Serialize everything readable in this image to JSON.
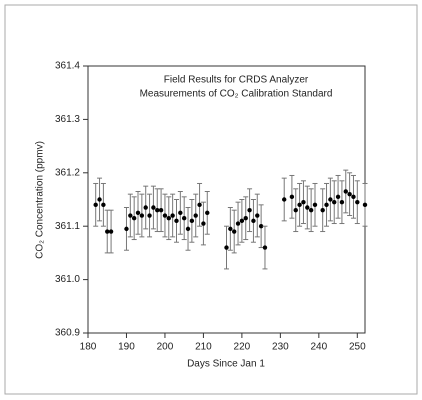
{
  "chart_data": {
    "type": "scatter",
    "title": [
      "Field Results for CRDS Analyzer",
      "Measurements of CO₂ Calibration Standard"
    ],
    "x_label": "Days Since Jan 1",
    "y_label": "CO₂ Concentration (ppmv)",
    "xlim": [
      180,
      252
    ],
    "xticks": [
      180,
      190,
      200,
      210,
      220,
      230,
      240,
      250
    ],
    "ylim": [
      360.9,
      361.4
    ],
    "yticks": [
      360.9,
      {
        "value": 361.0,
        "label": "361.0"
      },
      361.1,
      361.2,
      361.3,
      361.4
    ],
    "series": [
      {
        "color": "#000000",
        "x": [
          182,
          183,
          184,
          185,
          186,
          190,
          191,
          192,
          193,
          194,
          195,
          196,
          197,
          198,
          199,
          200,
          201,
          202,
          203,
          204,
          205,
          206,
          207,
          208,
          209,
          210,
          211,
          216,
          217,
          218,
          219,
          220,
          221,
          222,
          223,
          224,
          225,
          226,
          231,
          233,
          234,
          235,
          236,
          237,
          238,
          239,
          241,
          242,
          243,
          244,
          245,
          246,
          247,
          248,
          249,
          250,
          252
        ],
        "values": [
          361.14,
          361.15,
          361.14,
          361.09,
          361.09,
          361.095,
          361.12,
          361.115,
          361.125,
          361.12,
          361.135,
          361.12,
          361.135,
          361.13,
          361.13,
          361.12,
          361.115,
          361.12,
          361.11,
          361.125,
          361.115,
          361.095,
          361.11,
          361.12,
          361.14,
          361.105,
          361.125,
          361.06,
          361.095,
          361.09,
          361.105,
          361.11,
          361.115,
          361.13,
          361.11,
          361.12,
          361.1,
          361.06,
          361.15,
          361.155,
          361.13,
          361.14,
          361.145,
          361.135,
          361.13,
          361.14,
          361.13,
          361.14,
          361.15,
          361.145,
          361.155,
          361.145,
          361.165,
          361.16,
          361.155,
          361.145,
          361.14
        ],
        "errors": [
          0.04,
          0.04,
          0.04,
          0.04,
          0.04,
          0.04,
          0.04,
          0.04,
          0.04,
          0.04,
          0.04,
          0.04,
          0.04,
          0.04,
          0.04,
          0.04,
          0.04,
          0.04,
          0.04,
          0.04,
          0.04,
          0.04,
          0.04,
          0.04,
          0.04,
          0.04,
          0.04,
          0.04,
          0.04,
          0.04,
          0.04,
          0.04,
          0.04,
          0.04,
          0.04,
          0.04,
          0.04,
          0.04,
          0.04,
          0.04,
          0.04,
          0.04,
          0.04,
          0.04,
          0.04,
          0.04,
          0.04,
          0.04,
          0.04,
          0.04,
          0.04,
          0.04,
          0.04,
          0.04,
          0.04,
          0.04,
          0.04
        ]
      }
    ]
  }
}
